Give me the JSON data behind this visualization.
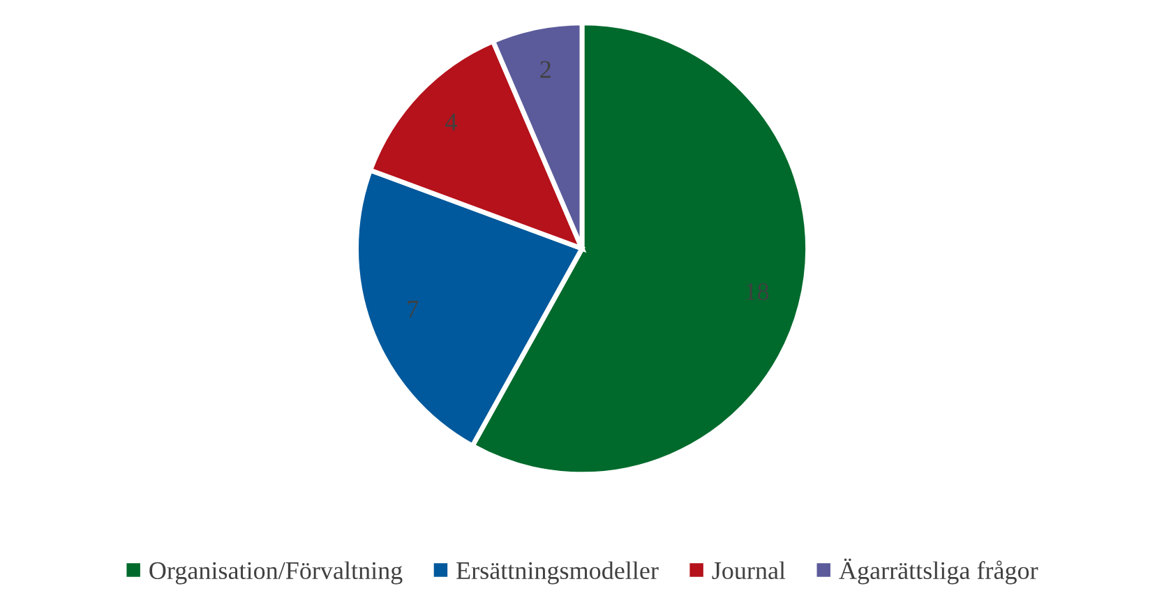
{
  "chart_data": {
    "type": "pie",
    "categories": [
      "Organisation/Förvaltning",
      "Ersättningsmodeller",
      "Journal",
      "Ägarrättsliga frågor"
    ],
    "values": [
      18,
      7,
      4,
      2
    ],
    "colors": [
      "#006a2c",
      "#00599c",
      "#b5121b",
      "#5b5b9b"
    ],
    "data_labels": true,
    "legend": "bottom"
  }
}
